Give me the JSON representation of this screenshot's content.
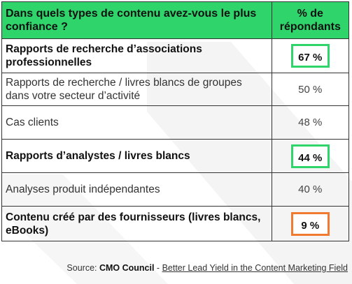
{
  "header": {
    "question": "Dans quels types de contenu avez-vous le plus confiance ?",
    "percent_col": "% de répondants"
  },
  "rows": [
    {
      "label": "Rapports de recherche d’associations professionnelles",
      "value": "67 %"
    },
    {
      "label": "Rapports de recherche / livres blancs de groupes dans votre secteur d’activité",
      "value": "50 %"
    },
    {
      "label": "Cas clients",
      "value": "48 %"
    },
    {
      "label": "Rapports d’analystes / livres blancs",
      "value": "44 %"
    },
    {
      "label": "Analyses produit indépendantes",
      "value": "40 %"
    },
    {
      "label": "Contenu créé par des fournisseurs (livres blancs, eBooks)",
      "value": "9 %"
    }
  ],
  "source": {
    "prefix": "Source: ",
    "org": "CMO Council",
    "sep": " - ",
    "title": "Better Lead Yield in the Content Marketing Field"
  },
  "colors": {
    "header_bg": "#2fd46b",
    "highlight_green": "#2fd46b",
    "highlight_orange": "#ef7a30"
  }
}
